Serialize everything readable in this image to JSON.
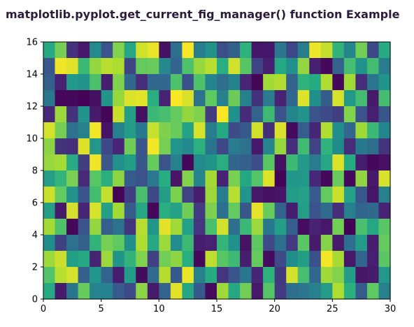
{
  "chart_data": {
    "type": "heatmap",
    "title": "matplotlib.pyplot.get_current_fig_manager() function Example",
    "xlabel": "",
    "ylabel": "",
    "xlim": [
      0,
      30
    ],
    "ylim": [
      0,
      16
    ],
    "xticks": [
      0,
      5,
      10,
      15,
      20,
      25,
      30
    ],
    "yticks": [
      0,
      2,
      4,
      6,
      8,
      10,
      12,
      14,
      16
    ],
    "colormap": "viridis",
    "value_range": [
      0,
      1
    ],
    "grid": false,
    "cell_aspect": "rectangular cells — 30 columns by 16 rows"
  },
  "colors": {
    "background": "#ffffff",
    "axis": "#000000",
    "title": "#2b1b3d"
  }
}
